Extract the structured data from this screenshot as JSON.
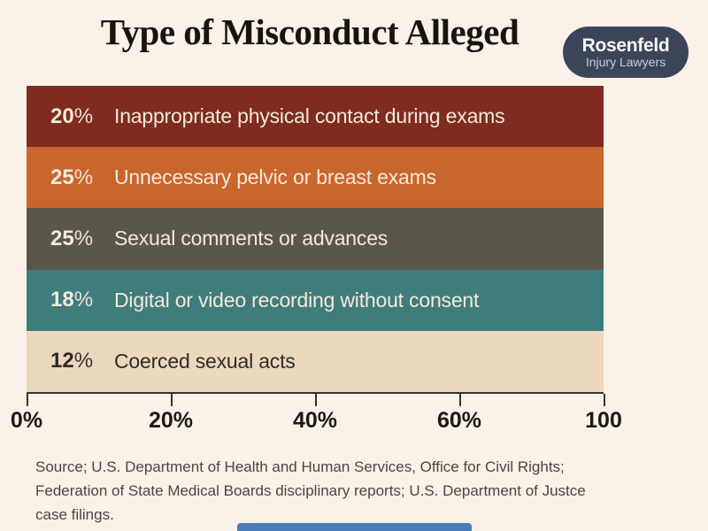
{
  "title": "Type of Misconduct Alleged",
  "logo": {
    "line1": "Rosenfeld",
    "line2": "Injury Lawyers",
    "bg_color": "#3c4459"
  },
  "chart_data": {
    "type": "bar",
    "orientation": "horizontal",
    "title": "Type of Misconduct Alleged",
    "categories": [
      "Inappropriate physical contact during exams",
      "Unnecessary pelvic or breast exams",
      "Sexual comments or advances",
      "Digital or video recording without consent",
      "Coerced sexual acts"
    ],
    "values": [
      20,
      25,
      25,
      18,
      12
    ],
    "unit": "%",
    "bar_colors": [
      "#7f2b20",
      "#c8662e",
      "#5b564b",
      "#3f7d7c",
      "#ecd8bd"
    ],
    "note": "bands drawn full-width; values shown as in-bar text labels",
    "x_axis": {
      "tick_labels": [
        "0%",
        "20%",
        "40%",
        "60%",
        "100"
      ],
      "grid": false
    },
    "legend": "none"
  },
  "bars": [
    {
      "pct": "20",
      "sym": "%",
      "label": "Inappropriate physical contact during exams",
      "color": "#7f2b20"
    },
    {
      "pct": "25",
      "sym": "%",
      "label": "Unnecessary pelvic or breast exams",
      "color": "#c8662e"
    },
    {
      "pct": "25",
      "sym": "%",
      "label": "Sexual comments or advances",
      "color": "#5b564b"
    },
    {
      "pct": "18",
      "sym": "%",
      "label": "Digital or video recording without consent",
      "color": "#3f7d7c"
    },
    {
      "pct": "12",
      "sym": "%",
      "label": "Coerced sexual acts",
      "color": "#ecd8bd"
    }
  ],
  "axis": {
    "ticks": [
      {
        "label": "0%",
        "pos": "0%"
      },
      {
        "label": "20%",
        "pos": "25%"
      },
      {
        "label": "40%",
        "pos": "50%"
      },
      {
        "label": "60%",
        "pos": "75%"
      },
      {
        "label": "100",
        "pos": "100%"
      }
    ]
  },
  "source": {
    "line1": "Source; U.S. Department of Health and Human Services, Office for Civil Rights;",
    "line2": "Federation of State Medical Boards disciplinary reports; U.S. Department of Justce",
    "line3": "case filings."
  },
  "colors": {
    "background": "#faf2e8",
    "bar_text_light": "#f4e9dc",
    "bar_text_dark": "#2f2b26",
    "bottom_accent": "#4a7bbd"
  }
}
